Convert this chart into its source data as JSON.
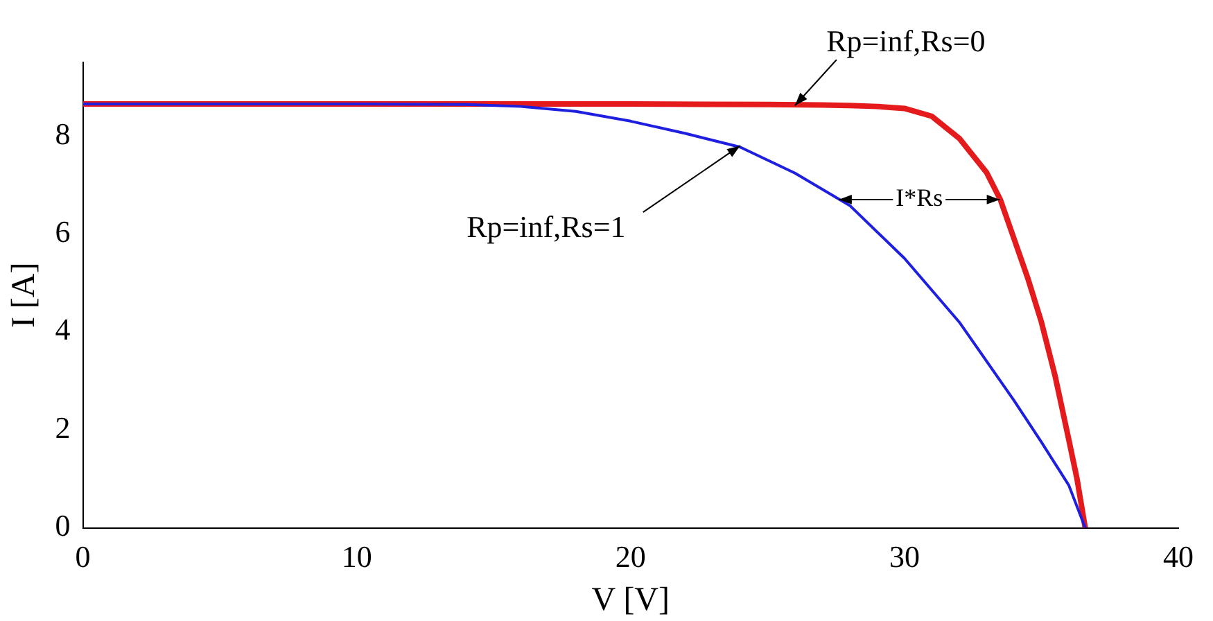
{
  "chart_data": {
    "type": "line",
    "xlabel": "V [V]",
    "ylabel": "I [A]",
    "xlim": [
      0,
      40
    ],
    "xticks": [
      0,
      10,
      20,
      30,
      40
    ],
    "ylim": [
      0,
      9.5
    ],
    "yticks": [
      0,
      2,
      4,
      6,
      8
    ],
    "grid": false,
    "legend": false,
    "marker": "none",
    "line_style": "solid",
    "series": [
      {
        "color": "#e41a1c",
        "x": [
          0,
          10,
          20,
          25,
          27,
          28,
          29,
          30,
          31,
          32,
          33,
          33.5,
          34,
          34.5,
          35,
          35.5,
          36,
          36.3,
          36.6
        ],
        "values": [
          8.65,
          8.65,
          8.65,
          8.64,
          8.63,
          8.62,
          8.6,
          8.56,
          8.4,
          7.95,
          7.25,
          6.7,
          5.9,
          5.1,
          4.2,
          3.1,
          1.8,
          1.0,
          0
        ]
      },
      {
        "color": "#1f1fe0",
        "x": [
          0,
          10,
          14,
          16,
          18,
          20,
          22,
          24,
          26,
          28,
          30,
          32,
          34,
          35,
          36,
          36.6
        ],
        "values": [
          8.65,
          8.65,
          8.64,
          8.6,
          8.5,
          8.3,
          8.05,
          7.77,
          7.24,
          6.58,
          5.5,
          4.2,
          2.6,
          1.75,
          0.87,
          0
        ]
      }
    ],
    "annotations": [
      {
        "text": "Rp=inf,Rs=0",
        "x": 26,
        "y": 8.62
      },
      {
        "text": "Rp=inf,Rs=1",
        "x": 24,
        "y": 7.8
      },
      {
        "text": "I*Rs",
        "x": 27.6,
        "y": 6.7
      }
    ]
  }
}
